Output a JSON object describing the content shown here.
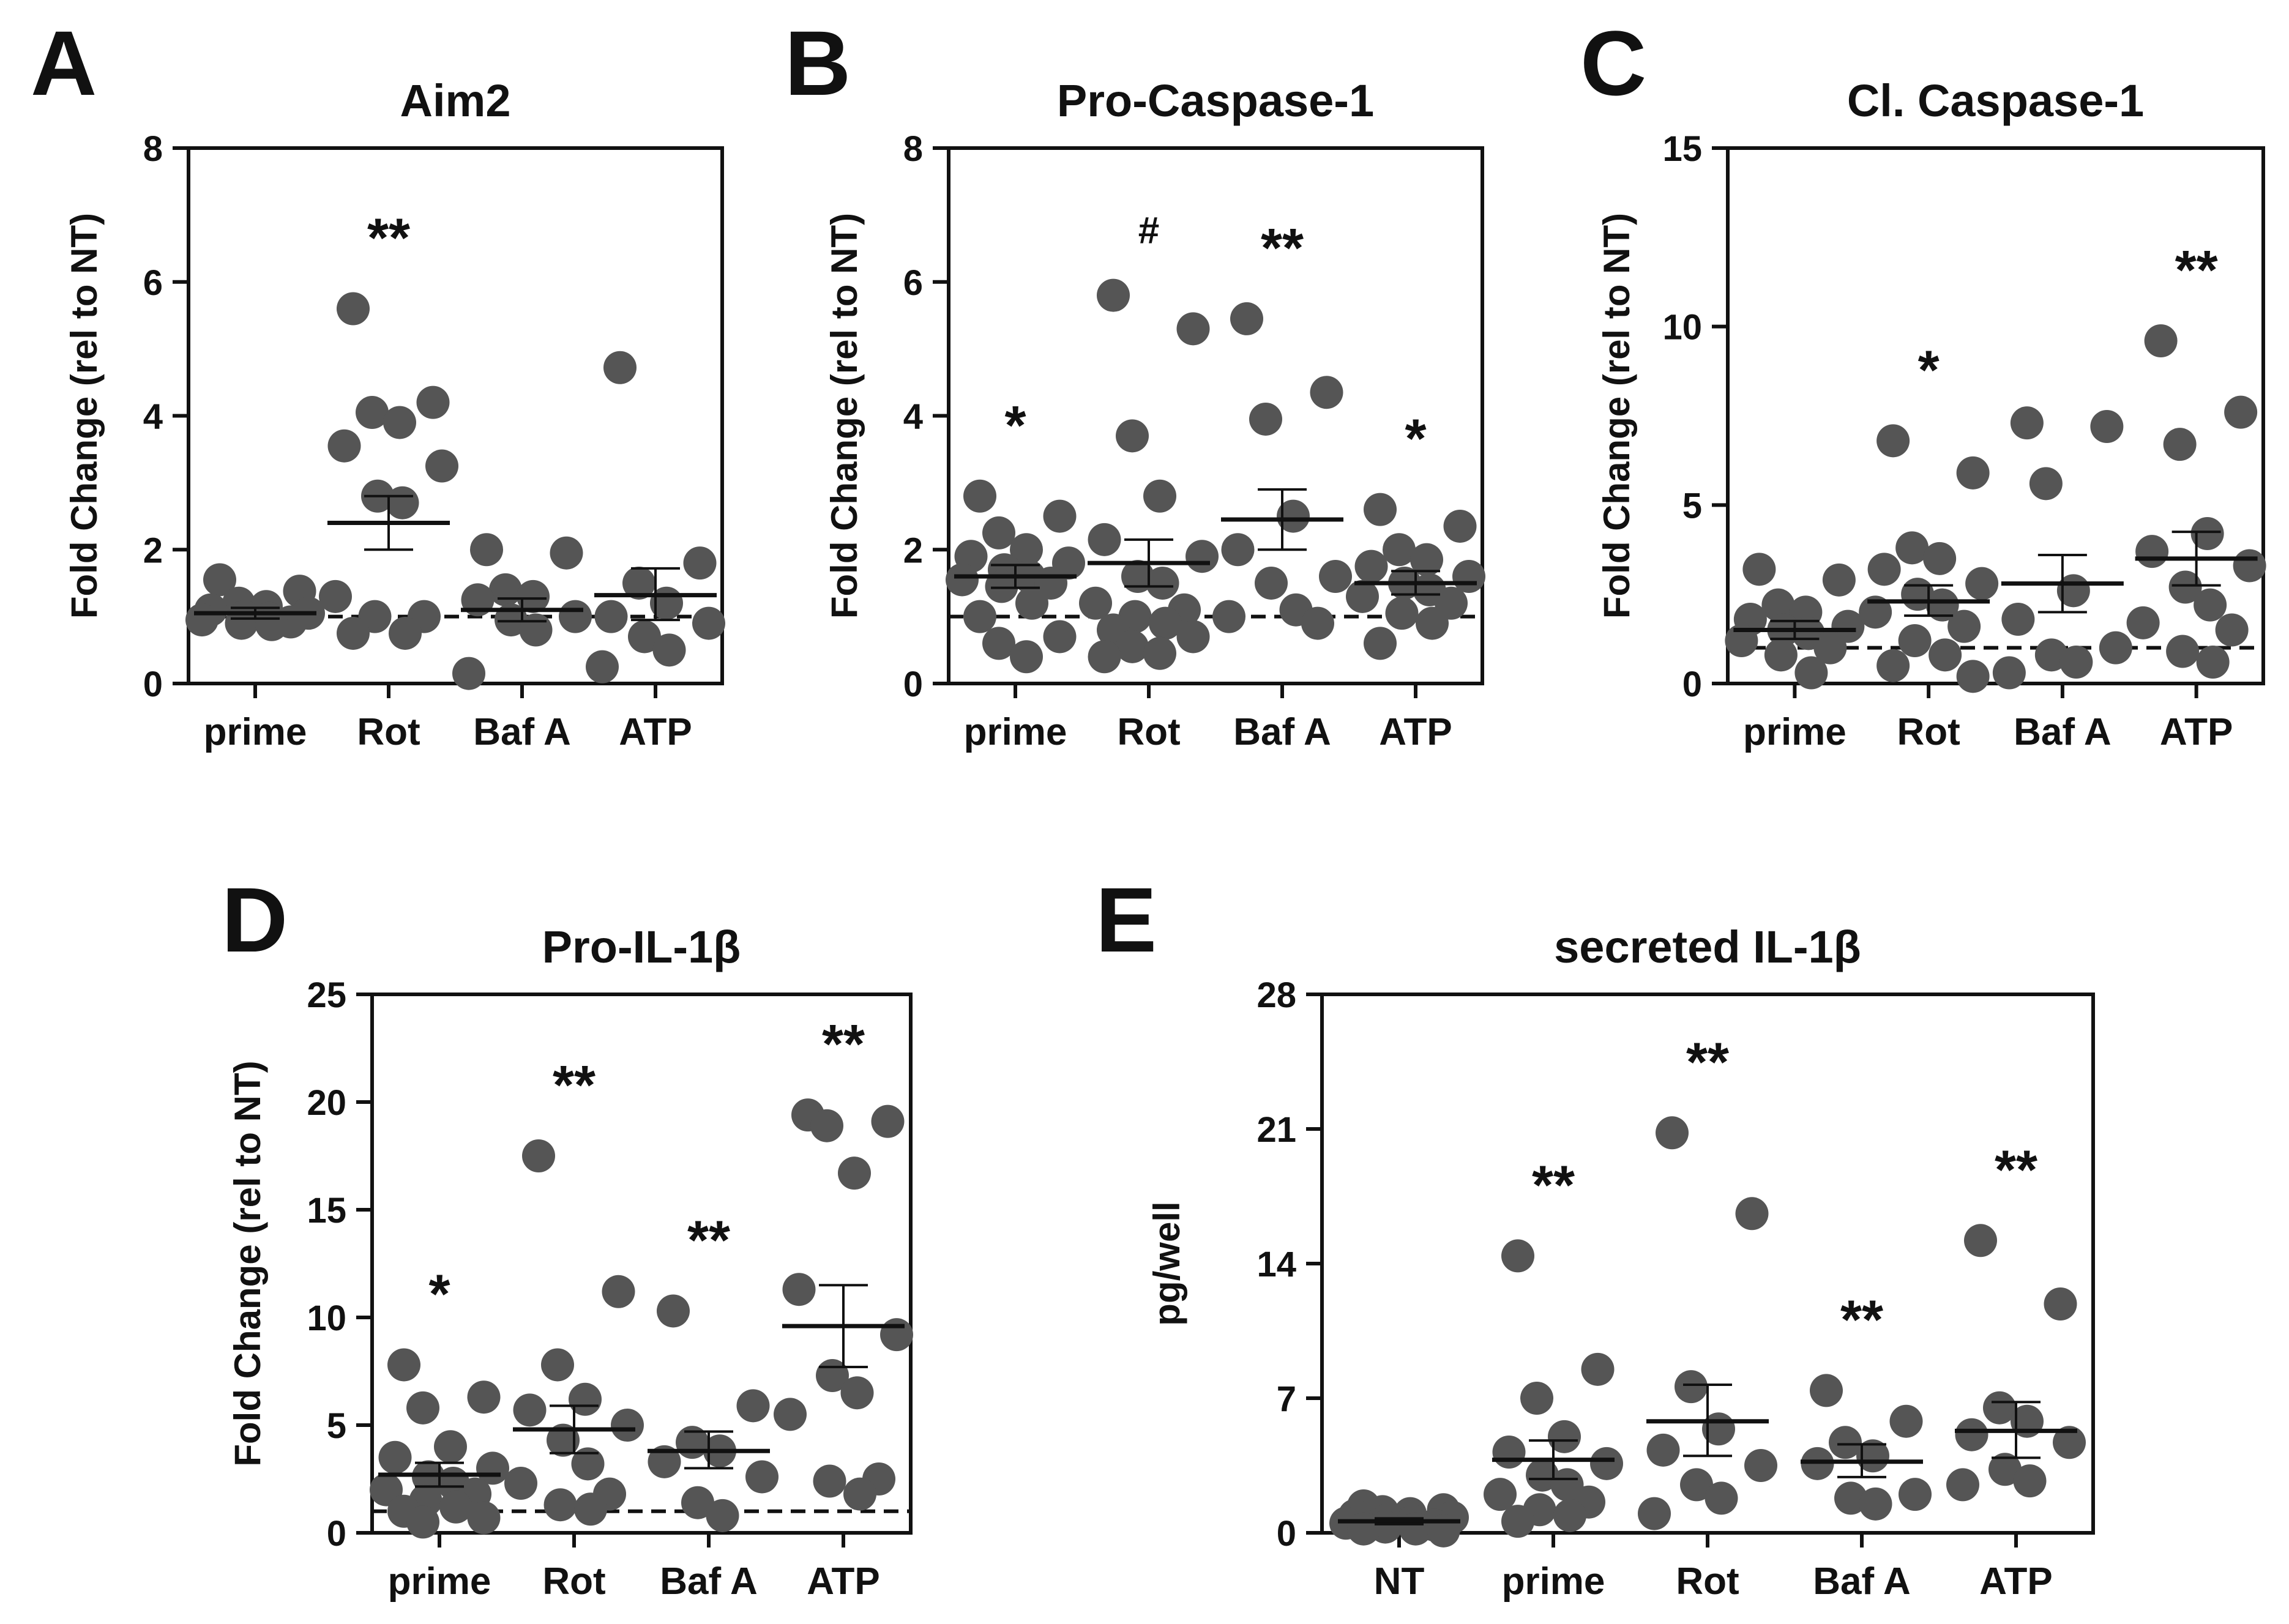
{
  "figure": {
    "background": "#ffffff",
    "axis_color": "#111111",
    "point_color": "#555555"
  },
  "chart_data": [
    {
      "id": "A",
      "panel_letter": "A",
      "type": "scatter",
      "title": "Aim2",
      "xlabel": "",
      "ylabel": "Fold Change (rel to NT)",
      "ylim": [
        0,
        8
      ],
      "yticks": [
        0,
        2,
        4,
        6,
        8
      ],
      "categories": [
        "prime",
        "Rot",
        "Baf A",
        "ATP"
      ],
      "reference_line": 1,
      "groups": [
        {
          "category": "prime",
          "mean": 1.05,
          "sem_low": 0.97,
          "sem_high": 1.13,
          "annotation": "",
          "points": [
            1.55,
            1.38,
            1.2,
            1.15,
            1.1,
            1.05,
            1.0,
            0.97,
            0.95,
            0.92,
            0.9,
            0.88
          ]
        },
        {
          "category": "Rot",
          "mean": 2.4,
          "sem_low": 2.0,
          "sem_high": 2.8,
          "annotation": "**",
          "points": [
            5.6,
            4.2,
            4.05,
            3.9,
            3.55,
            3.25,
            2.8,
            2.7,
            1.3,
            1.0,
            1.0,
            0.75,
            0.75
          ]
        },
        {
          "category": "Baf A",
          "mean": 1.1,
          "sem_low": 0.93,
          "sem_high": 1.27,
          "annotation": "",
          "points": [
            2.0,
            1.95,
            1.4,
            1.3,
            1.25,
            1.0,
            0.95,
            0.8,
            0.15
          ]
        },
        {
          "category": "ATP",
          "mean": 1.32,
          "sem_low": 0.95,
          "sem_high": 1.72,
          "annotation": "",
          "points": [
            4.72,
            1.8,
            1.5,
            1.2,
            1.0,
            0.9,
            0.7,
            0.5,
            0.25
          ]
        }
      ]
    },
    {
      "id": "B",
      "panel_letter": "B",
      "type": "scatter",
      "title": "Pro-Caspase-1",
      "xlabel": "",
      "ylabel": "Fold Change (rel to NT)",
      "ylim": [
        0,
        8
      ],
      "yticks": [
        0,
        2,
        4,
        6,
        8
      ],
      "categories": [
        "prime",
        "Rot",
        "Baf A",
        "ATP"
      ],
      "reference_line": 1,
      "groups": [
        {
          "category": "prime",
          "mean": 1.6,
          "sem_low": 1.43,
          "sem_high": 1.77,
          "annotation": "*",
          "points": [
            2.8,
            2.5,
            2.25,
            2.0,
            1.9,
            1.8,
            1.7,
            1.6,
            1.55,
            1.5,
            1.45,
            1.2,
            1.0,
            0.7,
            0.6,
            0.4
          ]
        },
        {
          "category": "Rot",
          "mean": 1.8,
          "sem_low": 1.45,
          "sem_high": 2.15,
          "annotation": "#",
          "points": [
            5.8,
            5.3,
            3.7,
            2.8,
            2.15,
            1.9,
            1.6,
            1.5,
            1.2,
            1.1,
            1.0,
            0.9,
            0.8,
            0.7,
            0.55,
            0.45,
            0.4
          ]
        },
        {
          "category": "Baf A",
          "mean": 2.45,
          "sem_low": 2.0,
          "sem_high": 2.9,
          "annotation": "**",
          "points": [
            5.45,
            4.35,
            3.95,
            2.5,
            2.0,
            1.6,
            1.5,
            1.1,
            1.0,
            0.9
          ]
        },
        {
          "category": "ATP",
          "mean": 1.5,
          "sem_low": 1.33,
          "sem_high": 1.68,
          "annotation": "*",
          "points": [
            2.6,
            2.35,
            2.0,
            1.85,
            1.75,
            1.6,
            1.5,
            1.4,
            1.3,
            1.2,
            1.05,
            0.9,
            0.6
          ]
        }
      ]
    },
    {
      "id": "C",
      "panel_letter": "C",
      "type": "scatter",
      "title": "Cl. Caspase-1",
      "xlabel": "",
      "ylabel": "Fold Change (rel to NT)",
      "ylim": [
        0,
        15
      ],
      "yticks": [
        0,
        5,
        10,
        15
      ],
      "categories": [
        "prime",
        "Rot",
        "Baf A",
        "ATP"
      ],
      "reference_line": 1,
      "groups": [
        {
          "category": "prime",
          "mean": 1.5,
          "sem_low": 1.25,
          "sem_high": 1.75,
          "annotation": "",
          "points": [
            3.2,
            2.9,
            2.2,
            2.0,
            1.8,
            1.6,
            1.5,
            1.4,
            1.2,
            1.0,
            0.8,
            0.3
          ]
        },
        {
          "category": "Rot",
          "mean": 2.3,
          "sem_low": 1.9,
          "sem_high": 2.75,
          "annotation": "*",
          "points": [
            6.8,
            5.9,
            3.8,
            3.5,
            3.2,
            2.8,
            2.5,
            2.2,
            2.0,
            1.6,
            1.2,
            0.8,
            0.5,
            0.2
          ]
        },
        {
          "category": "Baf A",
          "mean": 2.8,
          "sem_low": 2.0,
          "sem_high": 3.6,
          "annotation": "",
          "points": [
            7.3,
            7.2,
            5.6,
            2.6,
            1.8,
            1.0,
            0.8,
            0.6,
            0.3
          ]
        },
        {
          "category": "ATP",
          "mean": 3.5,
          "sem_low": 2.75,
          "sem_high": 4.25,
          "annotation": "**",
          "points": [
            9.6,
            7.6,
            6.7,
            4.2,
            3.7,
            3.3,
            2.7,
            2.2,
            1.7,
            1.5,
            0.9,
            0.6
          ]
        }
      ]
    },
    {
      "id": "D",
      "panel_letter": "D",
      "type": "scatter",
      "title": "Pro-IL-1β",
      "xlabel": "",
      "ylabel": "Fold Change (rel to NT)",
      "ylim": [
        0,
        25
      ],
      "yticks": [
        0,
        5,
        10,
        15,
        20,
        25
      ],
      "categories": [
        "prime",
        "Rot",
        "Baf A",
        "ATP"
      ],
      "reference_line": 1,
      "groups": [
        {
          "category": "prime",
          "mean": 2.7,
          "sem_low": 2.15,
          "sem_high": 3.25,
          "annotation": "*",
          "points": [
            7.8,
            6.3,
            5.8,
            4.0,
            3.5,
            3.0,
            2.6,
            2.3,
            2.0,
            1.8,
            1.5,
            1.2,
            1.0,
            0.7,
            0.5
          ]
        },
        {
          "category": "Rot",
          "mean": 4.8,
          "sem_low": 3.7,
          "sem_high": 5.9,
          "annotation": "**",
          "points": [
            17.5,
            11.2,
            7.8,
            6.2,
            5.7,
            5.0,
            4.3,
            3.2,
            2.3,
            1.8,
            1.3,
            1.1
          ]
        },
        {
          "category": "Baf A",
          "mean": 3.8,
          "sem_low": 3.0,
          "sem_high": 4.7,
          "annotation": "**",
          "points": [
            10.3,
            5.9,
            4.2,
            3.8,
            3.3,
            2.6,
            1.4,
            0.8
          ]
        },
        {
          "category": "ATP",
          "mean": 9.6,
          "sem_low": 7.7,
          "sem_high": 11.5,
          "annotation": "**",
          "points": [
            19.4,
            19.1,
            18.9,
            16.7,
            11.3,
            9.2,
            7.3,
            6.5,
            5.5,
            2.5,
            2.4,
            1.8
          ]
        }
      ]
    },
    {
      "id": "E",
      "panel_letter": "E",
      "type": "scatter",
      "title": "secreted IL-1β",
      "xlabel": "",
      "ylabel": "pg/well",
      "ylim": [
        0,
        28
      ],
      "yticks": [
        0,
        7,
        14,
        21,
        28
      ],
      "categories": [
        "NT",
        "prime",
        "Rot",
        "Baf A",
        "ATP"
      ],
      "reference_line": null,
      "groups": [
        {
          "category": "NT",
          "mean": 0.6,
          "sem_low": 0.45,
          "sem_high": 0.75,
          "annotation": "",
          "points": [
            1.4,
            1.2,
            1.1,
            1.0,
            0.9,
            0.8,
            0.7,
            0.6,
            0.5,
            0.4,
            0.3,
            0.2,
            0.2,
            0.1
          ]
        },
        {
          "category": "prime",
          "mean": 3.8,
          "sem_low": 2.8,
          "sem_high": 4.8,
          "annotation": "**",
          "points": [
            14.4,
            8.5,
            7.0,
            5.0,
            4.2,
            3.6,
            3.0,
            2.5,
            2.0,
            1.6,
            1.2,
            0.9,
            0.6
          ]
        },
        {
          "category": "Rot",
          "mean": 5.8,
          "sem_low": 4.0,
          "sem_high": 7.7,
          "annotation": "**",
          "points": [
            20.8,
            16.6,
            7.6,
            5.4,
            4.3,
            3.5,
            2.5,
            1.8,
            1.0
          ]
        },
        {
          "category": "Baf A",
          "mean": 3.7,
          "sem_low": 2.9,
          "sem_high": 4.6,
          "annotation": "**",
          "points": [
            7.4,
            5.8,
            4.7,
            4.0,
            3.6,
            2.0,
            1.8,
            1.5
          ]
        },
        {
          "category": "ATP",
          "mean": 5.3,
          "sem_low": 3.9,
          "sem_high": 6.8,
          "annotation": "**",
          "points": [
            15.2,
            11.9,
            6.5,
            5.8,
            5.1,
            4.7,
            3.3,
            2.7,
            2.5
          ]
        }
      ]
    }
  ]
}
